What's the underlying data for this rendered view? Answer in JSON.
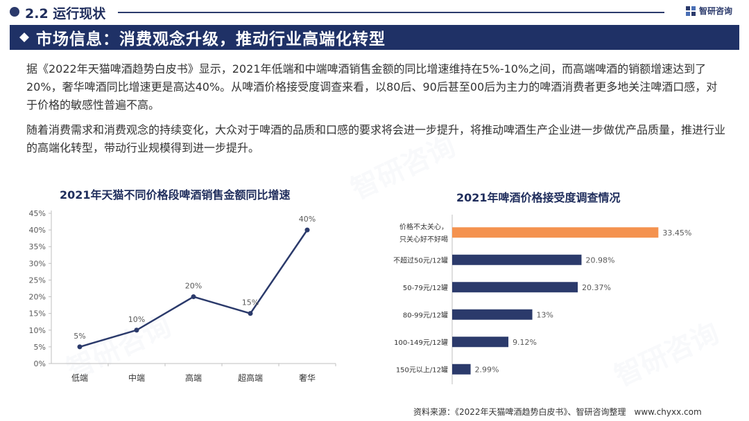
{
  "header": {
    "section": "2.2 运行现状",
    "brand": "智研咨询"
  },
  "banner": {
    "title": "市场信息：消费观念升级，推动行业高端化转型"
  },
  "paragraphs": [
    "据《2022年天猫啤酒趋势白皮书》显示，2021年低端和中端啤酒销售金额的同比增速维持在5%-10%之间，而高端啤酒的销额增速达到了20%，奢华啤酒同比增速更是高达40%。从啤酒价格接受度调查来看，以80后、90后甚至00后为主力的啤酒消费者更多地关注啤酒口感，对于价格的敏感性普遍不高。",
    "随着消费需求和消费观念的持续变化，大众对于啤酒的品质和口感的要求将会进一步提升，将推动啤酒生产企业进一步做优产品质量，推进行业的高端化转型，带动行业规模得到进一步提升。"
  ],
  "watermark": "智研咨询",
  "footer": "资料来源：《2022年天猫啤酒趋势白皮书》、智研咨询整理　www.chyxx.com",
  "colors": {
    "navy": "#1f3166",
    "series": "#2b3a6b",
    "highlight": "#f4924f"
  },
  "chart_data": [
    {
      "type": "line",
      "title": "2021年天猫不同价格段啤酒销售金额同比增速",
      "categories": [
        "低端",
        "中端",
        "高端",
        "超高端",
        "奢华"
      ],
      "values": [
        5,
        10,
        20,
        15,
        40
      ],
      "data_labels": [
        "5%",
        "10%",
        "20%",
        "15%",
        "40%"
      ],
      "yticks": [
        "0%",
        "5%",
        "10%",
        "15%",
        "20%",
        "25%",
        "30%",
        "35%",
        "40%",
        "45%"
      ],
      "ylim": [
        0,
        45
      ],
      "grid": false
    },
    {
      "type": "bar",
      "orientation": "horizontal",
      "title": "2021年啤酒价格接受度调查情况",
      "categories": [
        [
          "价格不太关心，",
          "只关心好不好喝"
        ],
        [
          "不超过50元/12罐"
        ],
        [
          "50-79元/12罐"
        ],
        [
          "80-99元/12罐"
        ],
        [
          "100-149元/12罐"
        ],
        [
          "150元以上/12罐"
        ]
      ],
      "values": [
        33.45,
        20.98,
        20.37,
        13,
        9.12,
        2.99
      ],
      "data_labels": [
        "33.45%",
        "20.98%",
        "20.37%",
        "13%",
        "9.12%",
        "2.99%"
      ],
      "highlight_index": 0,
      "xlim": [
        0,
        36
      ]
    }
  ]
}
